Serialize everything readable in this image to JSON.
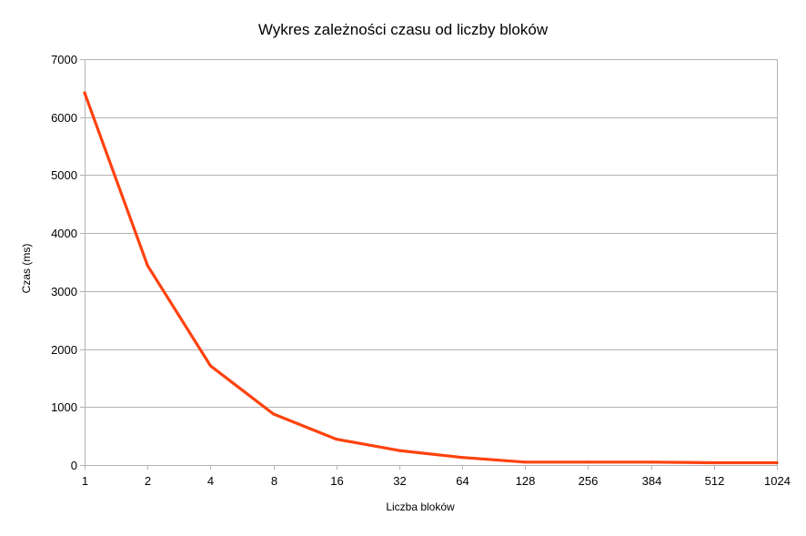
{
  "chart_data": {
    "type": "line",
    "title": "Wykres zależności czasu od liczby bloków",
    "xlabel": "Liczba bloków",
    "ylabel": "Czas (ms)",
    "categories": [
      "1",
      "2",
      "4",
      "8",
      "16",
      "32",
      "64",
      "128",
      "256",
      "384",
      "512",
      "1024"
    ],
    "series": [
      {
        "name": "",
        "color": "#ff420e",
        "values": [
          6420,
          3440,
          1710,
          880,
          445,
          250,
          130,
          50,
          50,
          50,
          40,
          40
        ]
      }
    ],
    "ylim": [
      0,
      7000
    ],
    "yticks": [
      0,
      1000,
      2000,
      3000,
      4000,
      5000,
      6000,
      7000
    ],
    "grid": true,
    "legend": "none"
  }
}
